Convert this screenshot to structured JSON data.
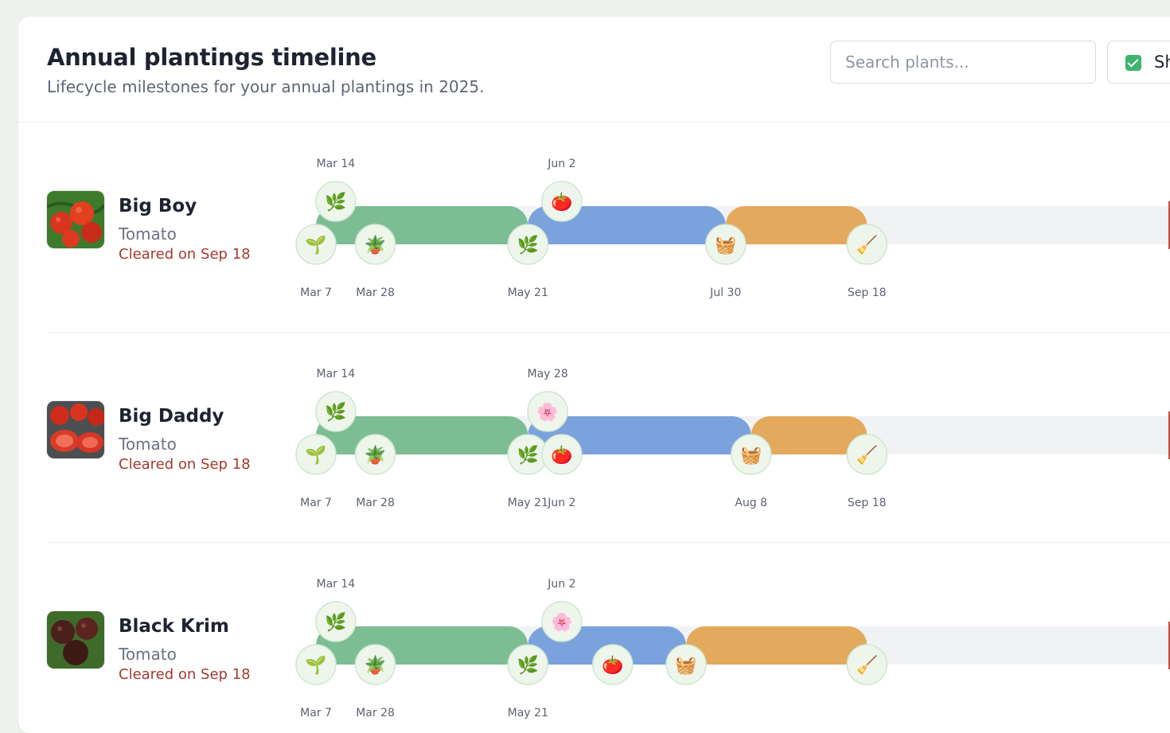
{
  "header": {
    "title": "Annual plantings timeline",
    "subtitle": "Lifecycle milestones for your annual plantings in 2025.",
    "search_placeholder": "Search plants...",
    "toggle_label": "Sh"
  },
  "colors": {
    "track": "#f1f2f4",
    "vegetative": "#7dbd93",
    "fruiting": "#7ca2dd",
    "harvest": "#e3a95d",
    "status": "#a33a2f",
    "checkbox": "#3db46d"
  },
  "plants": [
    {
      "name": "Big Boy",
      "type": "Tomato",
      "status": "Cleared on Sep 18",
      "events": [
        {
          "date": "Mar 7",
          "day": 66,
          "icon": "sprout-icon",
          "glyph": "🌱",
          "side": "bottom"
        },
        {
          "date": "Mar 14",
          "day": 73,
          "icon": "leaf-icon",
          "glyph": "🌿",
          "side": "top"
        },
        {
          "date": "Mar 28",
          "day": 87,
          "icon": "potted-plant-icon",
          "glyph": "🪴",
          "side": "bottom"
        },
        {
          "date": "May 21",
          "day": 141,
          "icon": "leaf-icon",
          "glyph": "🌿",
          "side": "bottom"
        },
        {
          "date": "Jun 2",
          "day": 153,
          "icon": "tomato-icon",
          "glyph": "🍅",
          "side": "top"
        },
        {
          "date": "Jul 30",
          "day": 211,
          "icon": "basket-icon",
          "glyph": "🧺",
          "side": "bottom"
        },
        {
          "date": "Sep 18",
          "day": 261,
          "icon": "broom-icon",
          "glyph": "🧹",
          "side": "bottom"
        }
      ],
      "phases": [
        {
          "phase": "vegetative",
          "start_day": 66,
          "end_day": 141
        },
        {
          "phase": "fruiting",
          "start_day": 141,
          "end_day": 211
        },
        {
          "phase": "harvest",
          "start_day": 211,
          "end_day": 261
        }
      ]
    },
    {
      "name": "Big Daddy",
      "type": "Tomato",
      "status": "Cleared on Sep 18",
      "events": [
        {
          "date": "Mar 7",
          "day": 66,
          "icon": "sprout-icon",
          "glyph": "🌱",
          "side": "bottom"
        },
        {
          "date": "Mar 14",
          "day": 73,
          "icon": "leaf-icon",
          "glyph": "🌿",
          "side": "top"
        },
        {
          "date": "Mar 28",
          "day": 87,
          "icon": "potted-plant-icon",
          "glyph": "🪴",
          "side": "bottom"
        },
        {
          "date": "May 21",
          "day": 141,
          "icon": "leaf-icon",
          "glyph": "🌿",
          "side": "bottom"
        },
        {
          "date": "May 28",
          "day": 148,
          "icon": "flower-icon",
          "glyph": "🌸",
          "side": "top"
        },
        {
          "date": "Jun 2",
          "day": 153,
          "icon": "tomato-icon",
          "glyph": "🍅",
          "side": "bottom"
        },
        {
          "date": "Aug 8",
          "day": 220,
          "icon": "basket-icon",
          "glyph": "🧺",
          "side": "bottom"
        },
        {
          "date": "Sep 18",
          "day": 261,
          "icon": "broom-icon",
          "glyph": "🧹",
          "side": "bottom"
        }
      ],
      "phases": [
        {
          "phase": "vegetative",
          "start_day": 66,
          "end_day": 141
        },
        {
          "phase": "fruiting",
          "start_day": 141,
          "end_day": 220
        },
        {
          "phase": "harvest",
          "start_day": 220,
          "end_day": 261
        }
      ]
    },
    {
      "name": "Black Krim",
      "type": "Tomato",
      "status": "Cleared on Sep 18",
      "events": [
        {
          "date": "Mar 7",
          "day": 66,
          "icon": "sprout-icon",
          "glyph": "🌱",
          "side": "bottom"
        },
        {
          "date": "Mar 14",
          "day": 73,
          "icon": "leaf-icon",
          "glyph": "🌿",
          "side": "top"
        },
        {
          "date": "Mar 28",
          "day": 87,
          "icon": "potted-plant-icon",
          "glyph": "🪴",
          "side": "bottom"
        },
        {
          "date": "May 21",
          "day": 141,
          "icon": "leaf-icon",
          "glyph": "🌿",
          "side": "bottom"
        },
        {
          "date": "Jun 2",
          "day": 153,
          "icon": "flower-icon",
          "glyph": "🌸",
          "side": "top"
        },
        {
          "date": "",
          "day": 171,
          "icon": "tomato-icon",
          "glyph": "🍅",
          "side": "bottom"
        },
        {
          "date": "",
          "day": 197,
          "icon": "basket-icon",
          "glyph": "🧺",
          "side": "bottom"
        },
        {
          "date": "",
          "day": 261,
          "icon": "broom-icon",
          "glyph": "🧹",
          "side": "bottom"
        }
      ],
      "phases": [
        {
          "phase": "vegetative",
          "start_day": 66,
          "end_day": 141
        },
        {
          "phase": "fruiting",
          "start_day": 141,
          "end_day": 197
        },
        {
          "phase": "harvest",
          "start_day": 197,
          "end_day": 261
        }
      ]
    }
  ]
}
